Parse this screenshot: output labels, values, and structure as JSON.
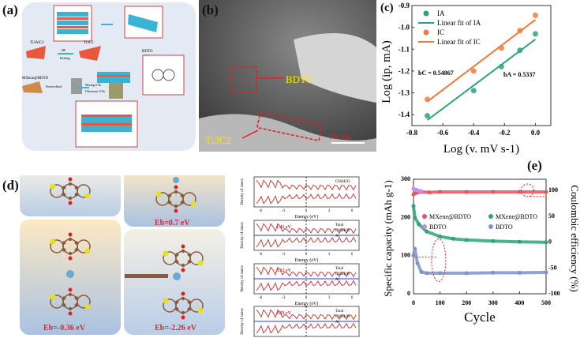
{
  "panels": {
    "a": {
      "label": "(a)",
      "texts": [
        "Ti3AlC2",
        "Ti3C2",
        "HF",
        "Etching",
        "BDTO",
        "MXene@BDTO",
        "Mixing 0.5h",
        "Ultrasonic 0.5h",
        "Freeze-dried"
      ]
    },
    "b": {
      "label": "(b)",
      "bdto": "BDTO",
      "ti3c2": "Ti3C2",
      "scale": "100 nm"
    },
    "c": {
      "label": "(c)"
    },
    "d": {
      "label": "(d)",
      "eb": [
        "Eb=0.7 eV",
        "Eb=-0.36 eV",
        "Eb=-2.26 eV"
      ],
      "dos": [
        {
          "legend": [
            "C6SH2O"
          ],
          "gap": ""
        },
        {
          "legend": [
            "Total",
            "C6SH2O",
            "Al"
          ],
          "gap": "1.41 eV"
        },
        {
          "legend": [
            "Total",
            "C6SH2O",
            "Al"
          ],
          "gap": "3.12 eV"
        },
        {
          "legend": [
            "Total",
            "C6SH2O",
            "Al"
          ],
          "gap": "4.33 eV"
        }
      ],
      "dos_ylabel": "Density of states",
      "dos_xlabel": "Energy (eV)"
    },
    "e": {
      "label": "(e)"
    }
  },
  "colors": {
    "green": "#2ea37a",
    "orange": "#f07a3c",
    "red": "#e8545a",
    "violet": "#c98be8",
    "blue": "#7f93c9",
    "dashred": "#e0202a"
  },
  "chart_data": [
    {
      "type": "scatter",
      "title": "",
      "xlabel": "Log (v. mV s-1)",
      "ylabel": "Log (ip, mA)",
      "xlim": [
        -0.8,
        0.1
      ],
      "ylim": [
        -1.45,
        -0.9
      ],
      "xticks": [
        "-0.8",
        "-0.6",
        "-0.4",
        "-0.2",
        "0.0"
      ],
      "yticks": [
        "-0.9",
        "-1.0",
        "-1.1",
        "-1.2",
        "-1.3",
        "-1.4"
      ],
      "legend": [
        "IA",
        "Linear fit of IA",
        "IC",
        "Linear fit of IC"
      ],
      "series": [
        {
          "name": "IA",
          "x": [
            -0.7,
            -0.4,
            -0.22,
            -0.1,
            0.0
          ],
          "y": [
            -1.405,
            -1.29,
            -1.18,
            -1.105,
            -1.03
          ],
          "fit": [
            [
              -0.7,
              -1.425
            ],
            [
              0.0,
              -1.055
            ]
          ]
        },
        {
          "name": "IC",
          "x": [
            -0.7,
            -0.4,
            -0.22,
            -0.1,
            0.0
          ],
          "y": [
            -1.33,
            -1.2,
            -1.095,
            -1.015,
            -0.945
          ],
          "fit": [
            [
              -0.7,
              -1.34
            ],
            [
              0.0,
              -0.965
            ]
          ]
        }
      ],
      "annotations": [
        "bC = 0.54867",
        "bA = 0.5337"
      ]
    },
    {
      "type": "scatter",
      "xlabel": "Cycle",
      "ylabel": "Specific capacity (mAh g-1)",
      "y2label": "Coulombic efficiency (%)",
      "xlim": [
        0,
        500
      ],
      "ylim": [
        0,
        300
      ],
      "y2lim": [
        -100,
        120
      ],
      "xticks": [
        "0",
        "100",
        "200",
        "300",
        "400",
        "500"
      ],
      "yticks": [
        "0",
        "100",
        "200",
        "300"
      ],
      "y2ticks": [
        "-100",
        "-50",
        "0",
        "50",
        "100"
      ],
      "legend": [
        "MXene@BDTO",
        "BDTO",
        "MXene@BDTO",
        "BDTO"
      ],
      "series": [
        {
          "name": "MXene@BDTO CE",
          "axis": "right",
          "x": [
            0,
            10,
            30,
            60,
            100,
            200,
            300,
            400,
            500
          ],
          "y": [
            92,
            95,
            97,
            96,
            97,
            97,
            97,
            97,
            97
          ]
        },
        {
          "name": "BDTO CE",
          "axis": "right",
          "x": [
            0,
            10,
            20,
            30
          ],
          "y": [
            103,
            101,
            99,
            98
          ]
        },
        {
          "name": "MXene@BDTO capacity",
          "axis": "left",
          "x": [
            0,
            5,
            20,
            50,
            100,
            150,
            200,
            300,
            400,
            500
          ],
          "y": [
            230,
            200,
            182,
            163,
            150,
            144,
            141,
            138,
            136,
            135
          ]
        },
        {
          "name": "BDTO capacity",
          "axis": "left",
          "x": [
            0,
            5,
            15,
            30,
            50,
            100,
            200,
            300,
            400,
            500
          ],
          "y": [
            100,
            118,
            80,
            57,
            54,
            54,
            54,
            55,
            55,
            56
          ]
        }
      ]
    }
  ]
}
